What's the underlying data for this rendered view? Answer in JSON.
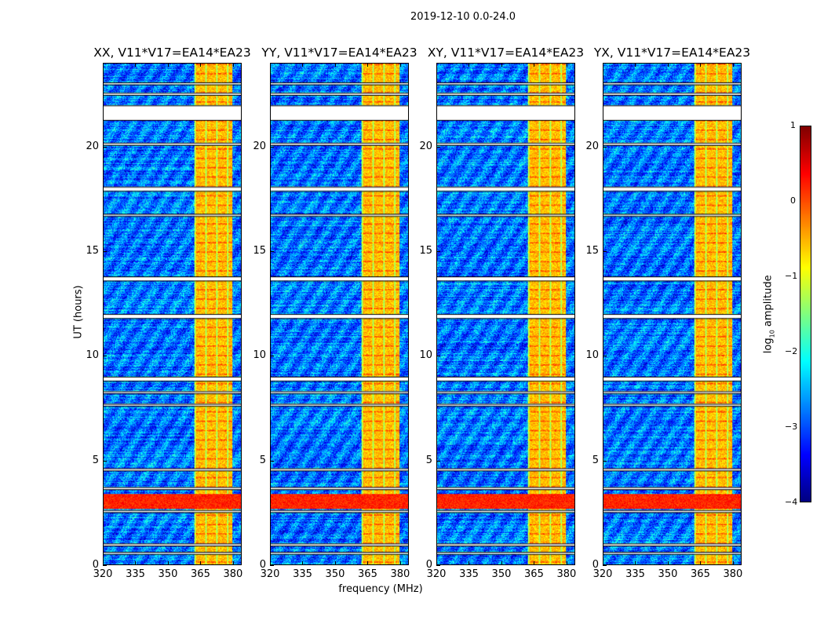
{
  "suptitle": "2019-12-10 0.0-24.0",
  "chart_data": {
    "type": "heatmap",
    "panels": [
      {
        "title": "XX, V11*V17=EA14*EA23"
      },
      {
        "title": "YY, V11*V17=EA14*EA23"
      },
      {
        "title": "XY, V11*V17=EA14*EA23"
      },
      {
        "title": "YX, V11*V17=EA14*EA23"
      }
    ],
    "xlabel": "frequency (MHz)",
    "ylabel": "UT (hours)",
    "xlim": [
      320,
      384
    ],
    "ylim": [
      0,
      24
    ],
    "xticks": [
      "320",
      "335",
      "350",
      "365",
      "380"
    ],
    "xtick_values": [
      320,
      335,
      350,
      365,
      380
    ],
    "yticks": [
      "0",
      "5",
      "10",
      "15",
      "20"
    ],
    "ytick_values": [
      0,
      5,
      10,
      15,
      20
    ],
    "colorbar": {
      "label": "log10 amplitude",
      "label_main": "log",
      "label_sub": "10",
      "label_rest": " amplitude",
      "range": [
        -4,
        1
      ],
      "ticks": [
        "1",
        "0",
        "−1",
        "−2",
        "−3",
        "−4"
      ],
      "tick_values": [
        1,
        0,
        -1,
        -2,
        -3,
        -4
      ],
      "colormap": "jet"
    },
    "rfi_band_mhz": [
      362,
      380
    ],
    "strong_rfi_hours": [
      2.7,
      3.4
    ],
    "flagged_hours": [
      [
        21.3,
        22.0
      ],
      [
        23.0,
        23.1
      ],
      [
        22.5,
        22.6
      ],
      [
        20.1,
        20.2
      ],
      [
        17.9,
        18.1
      ],
      [
        16.7,
        16.8
      ],
      [
        13.6,
        13.8
      ],
      [
        11.8,
        12.0
      ],
      [
        8.8,
        9.0
      ],
      [
        8.2,
        8.3
      ],
      [
        7.6,
        7.7
      ],
      [
        4.5,
        4.6
      ],
      [
        3.6,
        3.7
      ],
      [
        2.5,
        2.6
      ],
      [
        0.9,
        1.0
      ],
      [
        0.5,
        0.6
      ]
    ]
  }
}
